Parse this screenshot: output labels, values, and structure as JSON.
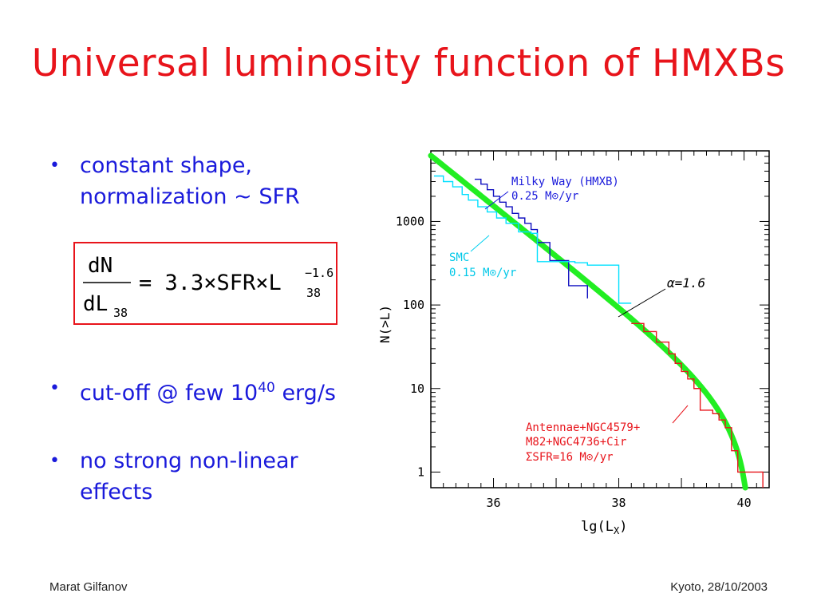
{
  "slide": {
    "title": "Universal luminosity function of HMXBs",
    "bullets": [
      {
        "text": "constant shape, normalization ~ SFR"
      },
      {
        "text_pre": "cut-off @ few 10",
        "sup": "40",
        "text_post": " erg/s"
      },
      {
        "text": "no strong non-linear effects"
      }
    ],
    "formula": {
      "numerator": "dN",
      "denominator": "dL",
      "den_sub": "38",
      "rhs_main": "= 3.3×SFR×L",
      "rhs_sub": "38",
      "rhs_sup": "−1.6"
    },
    "footer": {
      "left": "Marat Gilfanov",
      "right": "Kyoto, 28/10/2003"
    }
  },
  "chart_data": {
    "type": "line",
    "xlabel": "lg(L",
    "xlabel_sub": "X",
    "xlabel_close": ")",
    "ylabel": "N(>L)",
    "xlim": [
      35.0,
      40.4
    ],
    "ylim": [
      0.65,
      7000
    ],
    "y_scale": "log",
    "x_ticks": [
      36,
      38,
      40
    ],
    "x_tick_labels": [
      "36",
      "38",
      "40"
    ],
    "y_ticks": [
      1,
      10,
      100,
      1000
    ],
    "y_tick_labels": [
      "1",
      "10",
      "100",
      "1000"
    ],
    "grid": false,
    "colors": {
      "milky_way": "#1010c0",
      "smc": "#00e0ff",
      "antennae": "#e8141b",
      "model": "#22ee22",
      "label_blue": "#1a1adb"
    },
    "annotations": {
      "milky_way": [
        "Milky Way (HMXB)",
        "0.25 M⊙/yr"
      ],
      "smc": [
        "SMC",
        "0.15 M⊙/yr"
      ],
      "alpha": "α=1.6",
      "antennae": [
        "Antennae+NGC4579+",
        "M82+NGC4736+Cir",
        "ΣSFR=16 M⊙/yr"
      ]
    },
    "series": [
      {
        "name": "Milky Way (HMXB)",
        "color": "#1010c0",
        "steps": [
          [
            35.7,
            3200
          ],
          [
            35.8,
            2800
          ],
          [
            35.9,
            2400
          ],
          [
            36.0,
            2000
          ],
          [
            36.1,
            1700
          ],
          [
            36.2,
            1500
          ],
          [
            36.3,
            1250
          ],
          [
            36.4,
            1100
          ],
          [
            36.5,
            950
          ],
          [
            36.6,
            800
          ],
          [
            36.7,
            560
          ],
          [
            36.9,
            340
          ],
          [
            37.2,
            340
          ],
          [
            37.2,
            170
          ],
          [
            37.5,
            170
          ],
          [
            37.5,
            120
          ]
        ]
      },
      {
        "name": "SMC",
        "color": "#00e0ff",
        "steps": [
          [
            35.05,
            3500
          ],
          [
            35.2,
            3000
          ],
          [
            35.35,
            2600
          ],
          [
            35.5,
            2100
          ],
          [
            35.6,
            1800
          ],
          [
            35.75,
            1500
          ],
          [
            35.9,
            1300
          ],
          [
            36.05,
            1100
          ],
          [
            36.2,
            950
          ],
          [
            36.4,
            750
          ],
          [
            36.6,
            720
          ],
          [
            36.7,
            680
          ],
          [
            36.7,
            330
          ],
          [
            37.3,
            320
          ],
          [
            37.5,
            300
          ],
          [
            38.0,
            300
          ],
          [
            38.0,
            105
          ],
          [
            38.2,
            105
          ]
        ]
      },
      {
        "name": "Antennae+NGC4579+M82+NGC4736+Cir",
        "color": "#e8141b",
        "steps": [
          [
            38.2,
            60
          ],
          [
            38.4,
            48
          ],
          [
            38.6,
            36
          ],
          [
            38.8,
            26
          ],
          [
            38.9,
            20
          ],
          [
            39.0,
            16
          ],
          [
            39.1,
            13
          ],
          [
            39.2,
            10
          ],
          [
            39.3,
            7.5
          ],
          [
            39.3,
            5.5
          ],
          [
            39.5,
            5.0
          ],
          [
            39.6,
            4.2
          ],
          [
            39.7,
            3.4
          ],
          [
            39.8,
            2.6
          ],
          [
            39.8,
            1.8
          ],
          [
            39.9,
            1.5
          ],
          [
            39.9,
            1.0
          ],
          [
            40.0,
            1.0
          ],
          [
            40.0,
            1.0
          ],
          [
            40.3,
            1.0
          ],
          [
            40.3,
            0.65
          ]
        ]
      },
      {
        "name": "model",
        "color": "#22ee22",
        "alpha": 1.6,
        "norm_at_38": 92,
        "cutoff": 40.1,
        "x_start": 35.0,
        "x_end": 40.22
      }
    ]
  }
}
